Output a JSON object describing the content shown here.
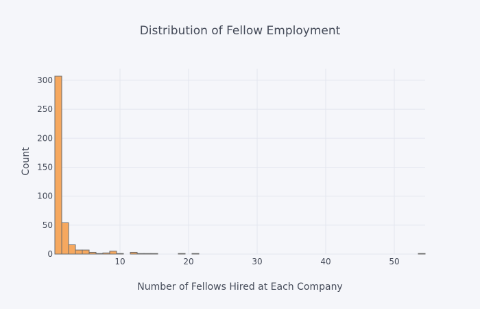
{
  "chart_data": {
    "type": "histogram",
    "title": "Distribution of Fellow Employment",
    "xlabel": "Number of Fellows Hired at Each Company",
    "ylabel": "Count",
    "xlim": [
      0.5,
      54.5
    ],
    "ylim": [
      0,
      320
    ],
    "xticks": [
      10,
      20,
      30,
      40,
      50
    ],
    "yticks": [
      0,
      50,
      100,
      150,
      200,
      250,
      300
    ],
    "grid": true,
    "bin_width": 1,
    "bins": [
      {
        "x0": 0.5,
        "x1": 1.5,
        "count": 307
      },
      {
        "x0": 1.5,
        "x1": 2.5,
        "count": 54
      },
      {
        "x0": 2.5,
        "x1": 3.5,
        "count": 16
      },
      {
        "x0": 3.5,
        "x1": 4.5,
        "count": 7
      },
      {
        "x0": 4.5,
        "x1": 5.5,
        "count": 7
      },
      {
        "x0": 5.5,
        "x1": 6.5,
        "count": 3
      },
      {
        "x0": 6.5,
        "x1": 7.5,
        "count": 1
      },
      {
        "x0": 7.5,
        "x1": 8.5,
        "count": 2
      },
      {
        "x0": 8.5,
        "x1": 9.5,
        "count": 5
      },
      {
        "x0": 9.5,
        "x1": 10.5,
        "count": 1
      },
      {
        "x0": 11.5,
        "x1": 12.5,
        "count": 3
      },
      {
        "x0": 12.5,
        "x1": 13.5,
        "count": 1
      },
      {
        "x0": 13.5,
        "x1": 14.5,
        "count": 1
      },
      {
        "x0": 14.5,
        "x1": 15.5,
        "count": 1
      },
      {
        "x0": 18.5,
        "x1": 19.5,
        "count": 1
      },
      {
        "x0": 20.5,
        "x1": 21.5,
        "count": 1
      },
      {
        "x0": 53.5,
        "x1": 54.5,
        "count": 1
      }
    ],
    "bar_color": "#f6a85f"
  }
}
